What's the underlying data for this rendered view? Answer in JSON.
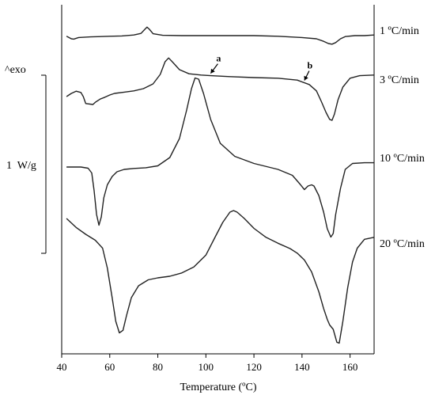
{
  "chart_data": {
    "type": "line",
    "xlabel": "Temperature (ºC)",
    "ylabel": "",
    "xlim": [
      40,
      170
    ],
    "xticks": [
      40,
      60,
      80,
      100,
      120,
      140,
      160
    ],
    "exo_label": "^exo",
    "scalebar_label": "1  W/g",
    "series": [
      {
        "name": "1 ºC/min",
        "points": [
          [
            42,
            -0.02
          ],
          [
            44,
            -0.1
          ],
          [
            45,
            -0.11
          ],
          [
            47,
            -0.06
          ],
          [
            52,
            -0.04
          ],
          [
            60,
            -0.02
          ],
          [
            65,
            -0.01
          ],
          [
            70,
            0.02
          ],
          [
            73,
            0.07
          ],
          [
            74.5,
            0.19
          ],
          [
            75.5,
            0.27
          ],
          [
            76.5,
            0.2
          ],
          [
            78,
            0.06
          ],
          [
            82,
            0.01
          ],
          [
            90,
            0.0
          ],
          [
            100,
            0.0
          ],
          [
            110,
            0.0
          ],
          [
            120,
            0.0
          ],
          [
            130,
            -0.02
          ],
          [
            140,
            -0.06
          ],
          [
            146,
            -0.1
          ],
          [
            149,
            -0.18
          ],
          [
            151,
            -0.25
          ],
          [
            152.5,
            -0.27
          ],
          [
            154,
            -0.22
          ],
          [
            156,
            -0.1
          ],
          [
            158,
            -0.03
          ],
          [
            162,
            0.0
          ],
          [
            166,
            0.0
          ],
          [
            170,
            0.02
          ]
        ]
      },
      {
        "name": "3 ºC/min",
        "points": [
          [
            42,
            0.0
          ],
          [
            44,
            0.1
          ],
          [
            46,
            0.17
          ],
          [
            48,
            0.13
          ],
          [
            49,
            0.0
          ],
          [
            50,
            -0.22
          ],
          [
            53,
            -0.25
          ],
          [
            54,
            -0.18
          ],
          [
            56,
            -0.08
          ],
          [
            58,
            -0.02
          ],
          [
            60,
            0.05
          ],
          [
            62,
            0.1
          ],
          [
            66,
            0.14
          ],
          [
            70,
            0.18
          ],
          [
            74,
            0.25
          ],
          [
            78,
            0.4
          ],
          [
            81,
            0.7
          ],
          [
            83,
            1.1
          ],
          [
            84.5,
            1.22
          ],
          [
            86,
            1.1
          ],
          [
            89,
            0.85
          ],
          [
            93,
            0.72
          ],
          [
            98,
            0.68
          ],
          [
            102,
            0.66
          ],
          [
            110,
            0.63
          ],
          [
            120,
            0.6
          ],
          [
            130,
            0.58
          ],
          [
            138,
            0.52
          ],
          [
            143,
            0.38
          ],
          [
            146,
            0.18
          ],
          [
            148,
            -0.15
          ],
          [
            150,
            -0.5
          ],
          [
            151.5,
            -0.72
          ],
          [
            152.5,
            -0.75
          ],
          [
            153.5,
            -0.55
          ],
          [
            155,
            -0.1
          ],
          [
            157,
            0.3
          ],
          [
            160,
            0.58
          ],
          [
            164,
            0.66
          ],
          [
            170,
            0.68
          ]
        ]
      },
      {
        "name": "10 ºC/min",
        "points": [
          [
            42,
            0.0
          ],
          [
            48,
            0.0
          ],
          [
            51,
            -0.05
          ],
          [
            52.5,
            -0.25
          ],
          [
            53.5,
            -1.0
          ],
          [
            54.5,
            -2.0
          ],
          [
            55.5,
            -2.45
          ],
          [
            56.5,
            -2.1
          ],
          [
            57.5,
            -1.3
          ],
          [
            59,
            -0.75
          ],
          [
            61,
            -0.4
          ],
          [
            63,
            -0.2
          ],
          [
            66,
            -0.1
          ],
          [
            70,
            -0.06
          ],
          [
            75,
            -0.03
          ],
          [
            80,
            0.05
          ],
          [
            85,
            0.4
          ],
          [
            89,
            1.2
          ],
          [
            92,
            2.4
          ],
          [
            94,
            3.3
          ],
          [
            95.5,
            3.75
          ],
          [
            97,
            3.7
          ],
          [
            99,
            3.1
          ],
          [
            102,
            2.0
          ],
          [
            106,
            1.0
          ],
          [
            112,
            0.45
          ],
          [
            120,
            0.15
          ],
          [
            130,
            -0.1
          ],
          [
            136,
            -0.35
          ],
          [
            139,
            -0.7
          ],
          [
            141,
            -0.95
          ],
          [
            142.5,
            -0.8
          ],
          [
            144,
            -0.75
          ],
          [
            145,
            -0.8
          ],
          [
            147,
            -1.2
          ],
          [
            149,
            -1.9
          ],
          [
            150.5,
            -2.6
          ],
          [
            152,
            -2.95
          ],
          [
            153,
            -2.8
          ],
          [
            154,
            -2.0
          ],
          [
            156,
            -0.9
          ],
          [
            158,
            -0.1
          ],
          [
            161,
            0.15
          ],
          [
            166,
            0.18
          ],
          [
            170,
            0.18
          ]
        ]
      },
      {
        "name": "20 ºC/min",
        "points": [
          [
            42,
            1.0
          ],
          [
            46,
            0.55
          ],
          [
            50,
            0.2
          ],
          [
            54,
            -0.1
          ],
          [
            57,
            -0.5
          ],
          [
            59,
            -1.5
          ],
          [
            61,
            -3.0
          ],
          [
            62.5,
            -4.2
          ],
          [
            64,
            -4.78
          ],
          [
            65.5,
            -4.65
          ],
          [
            67,
            -3.9
          ],
          [
            69,
            -3.0
          ],
          [
            72,
            -2.4
          ],
          [
            76,
            -2.1
          ],
          [
            80,
            -2.0
          ],
          [
            85,
            -1.92
          ],
          [
            90,
            -1.75
          ],
          [
            95,
            -1.45
          ],
          [
            100,
            -0.85
          ],
          [
            104,
            0.1
          ],
          [
            107,
            0.8
          ],
          [
            110,
            1.32
          ],
          [
            111.5,
            1.4
          ],
          [
            113,
            1.32
          ],
          [
            116,
            1.0
          ],
          [
            120,
            0.5
          ],
          [
            125,
            0.05
          ],
          [
            130,
            -0.25
          ],
          [
            135,
            -0.52
          ],
          [
            138,
            -0.75
          ],
          [
            141,
            -1.1
          ],
          [
            144,
            -1.7
          ],
          [
            147,
            -2.7
          ],
          [
            149,
            -3.55
          ],
          [
            150.5,
            -4.1
          ],
          [
            151.5,
            -4.38
          ],
          [
            153,
            -4.6
          ],
          [
            154.5,
            -5.25
          ],
          [
            155.5,
            -5.3
          ],
          [
            157,
            -4.2
          ],
          [
            159,
            -2.5
          ],
          [
            161,
            -1.2
          ],
          [
            163,
            -0.5
          ],
          [
            166,
            -0.05
          ],
          [
            170,
            0.05
          ]
        ]
      }
    ],
    "annotations": [
      {
        "label": "a",
        "x": 102,
        "series": "3 ºC/min"
      },
      {
        "label": "b",
        "x": 141,
        "series": "3 ºC/min"
      }
    ]
  }
}
